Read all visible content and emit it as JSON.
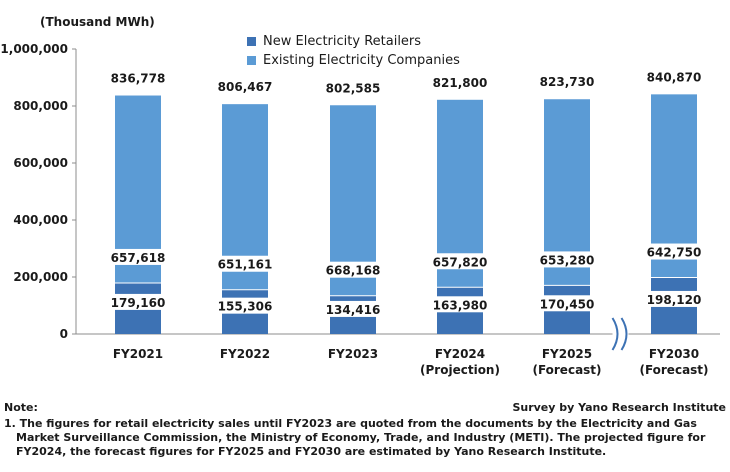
{
  "chart_data": {
    "type": "bar",
    "stacked": true,
    "unit_label": "(Thousand MWh)",
    "categories": [
      "FY2021",
      "FY2022",
      "FY2023",
      "FY2024",
      "FY2025",
      "FY2030"
    ],
    "category_sublabels": [
      "",
      "",
      "",
      "(Projection)",
      "(Forecast)",
      "(Forecast)"
    ],
    "series": [
      {
        "name": "New Electricity Retailers",
        "color": "#3d72b4",
        "values": [
          179160,
          155306,
          134416,
          163980,
          170450,
          198120
        ],
        "labels": [
          "179,160",
          "155,306",
          "134,416",
          "163,980",
          "170,450",
          "198,120"
        ]
      },
      {
        "name": "Existing Electricity Companies",
        "color": "#5b9bd5",
        "values": [
          657618,
          651161,
          668168,
          657820,
          653280,
          642750
        ],
        "labels": [
          "657,618",
          "651,161",
          "668,168",
          "657,820",
          "653,280",
          "642,750"
        ]
      }
    ],
    "total_labels": [
      "836,778",
      "806,467",
      "802,585",
      "821,800",
      "823,730",
      "840,870"
    ],
    "y_ticks": [
      "0",
      "200,000",
      "400,000",
      "600,000",
      "800,000",
      "1,000,000"
    ],
    "ylim": [
      0,
      1000000
    ],
    "axis_break_between": [
      "FY2025",
      "FY2030"
    ],
    "legend_position": "top-center",
    "grid": false
  },
  "notes": {
    "heading": "Note:",
    "source": "Survey by Yano Research Institute",
    "lines": [
      "1. The figures for retail electricity sales until FY2023 are quoted from the documents by the Electricity and Gas Market Surveillance Commission, the Ministry of Economy, Trade, and Industry (METI). The projected figure for FY2024, the forecast figures for FY2025 and FY2030 are estimated by Yano Research Institute."
    ]
  }
}
